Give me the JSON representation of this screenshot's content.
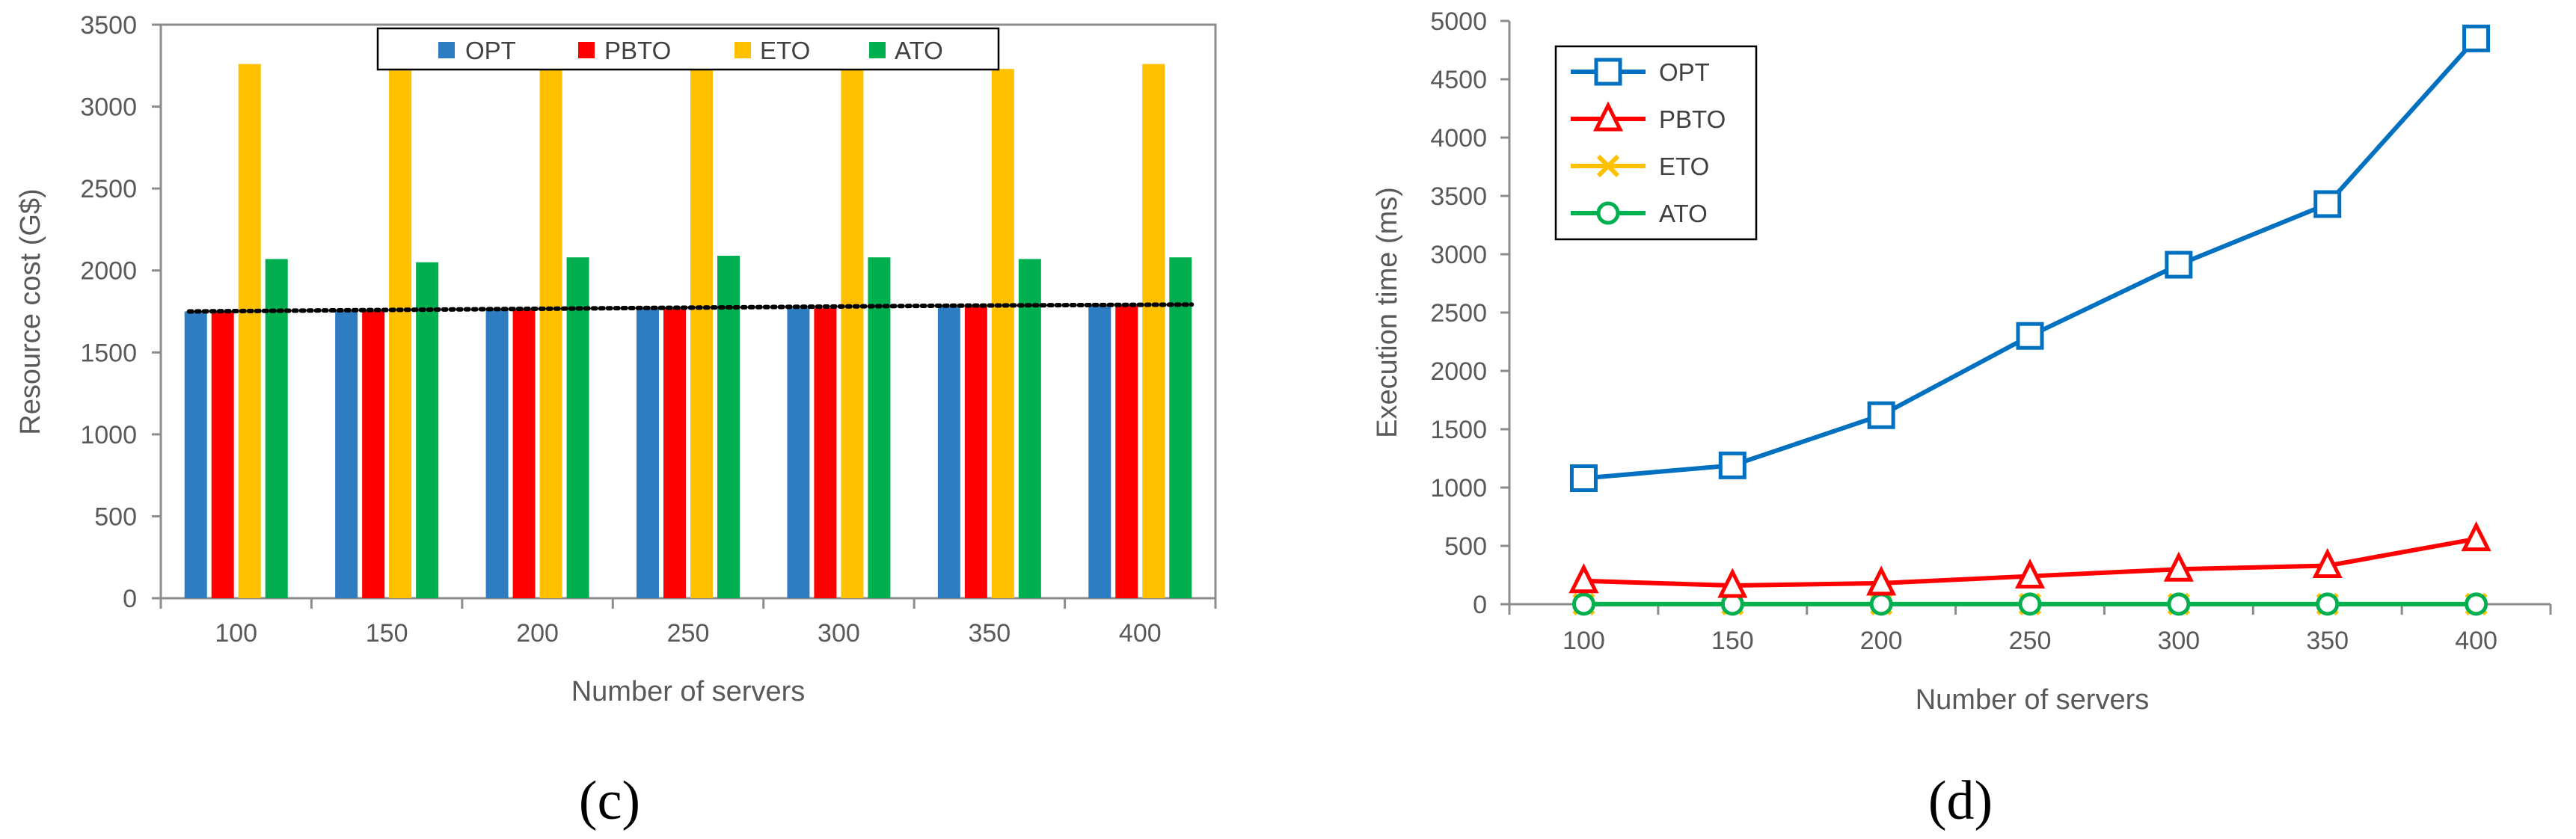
{
  "chart_data": [
    {
      "type": "bar",
      "panel_label": "(c)",
      "xlabel": "Number of servers",
      "ylabel": "Resource cost (G$)",
      "categories": [
        "100",
        "150",
        "200",
        "250",
        "300",
        "350",
        "400"
      ],
      "ylim": [
        0,
        3500
      ],
      "yticks": [
        "0",
        "500",
        "1000",
        "1500",
        "2000",
        "2500",
        "3000",
        "3500"
      ],
      "grid": false,
      "legend_position": "top-center",
      "series": [
        {
          "name": "OPT",
          "color": "#2e7dc3",
          "values": [
            1750,
            1755,
            1765,
            1770,
            1770,
            1780,
            1785
          ]
        },
        {
          "name": "PBTO",
          "color": "#ff0000",
          "values": [
            1750,
            1755,
            1765,
            1770,
            1770,
            1780,
            1785
          ]
        },
        {
          "name": "ETO",
          "color": "#ffc000",
          "values": [
            3260,
            3220,
            3260,
            3260,
            3230,
            3230,
            3260
          ]
        },
        {
          "name": "ATO",
          "color": "#00b050",
          "values": [
            2070,
            2050,
            2080,
            2090,
            2080,
            2070,
            2080
          ]
        }
      ],
      "trendline": {
        "style": "dotted",
        "color": "#000000",
        "values": [
          1750,
          1757,
          1764,
          1771,
          1778,
          1785,
          1792
        ]
      }
    },
    {
      "type": "line",
      "panel_label": "(d)",
      "xlabel": "Number of servers",
      "ylabel": "Execution time (ms)",
      "categories": [
        "100",
        "150",
        "200",
        "250",
        "300",
        "350",
        "400"
      ],
      "ylim": [
        0,
        5000
      ],
      "yticks": [
        "0",
        "500",
        "1000",
        "1500",
        "2000",
        "2500",
        "3000",
        "3500",
        "4000",
        "4500",
        "5000"
      ],
      "grid": false,
      "legend_position": "top-left",
      "series": [
        {
          "name": "OPT",
          "color": "#0070c0",
          "marker": "square",
          "values": [
            1080,
            1190,
            1620,
            2300,
            2910,
            3430,
            4850
          ]
        },
        {
          "name": "PBTO",
          "color": "#ff0000",
          "marker": "triangle",
          "values": [
            200,
            160,
            180,
            240,
            300,
            330,
            560
          ]
        },
        {
          "name": "ETO",
          "color": "#ffc000",
          "marker": "x",
          "values": [
            1,
            1,
            1,
            1,
            1,
            1,
            1
          ]
        },
        {
          "name": "ATO",
          "color": "#00b050",
          "marker": "circle",
          "values": [
            1,
            1,
            1,
            1,
            1,
            1,
            1
          ]
        }
      ]
    }
  ]
}
